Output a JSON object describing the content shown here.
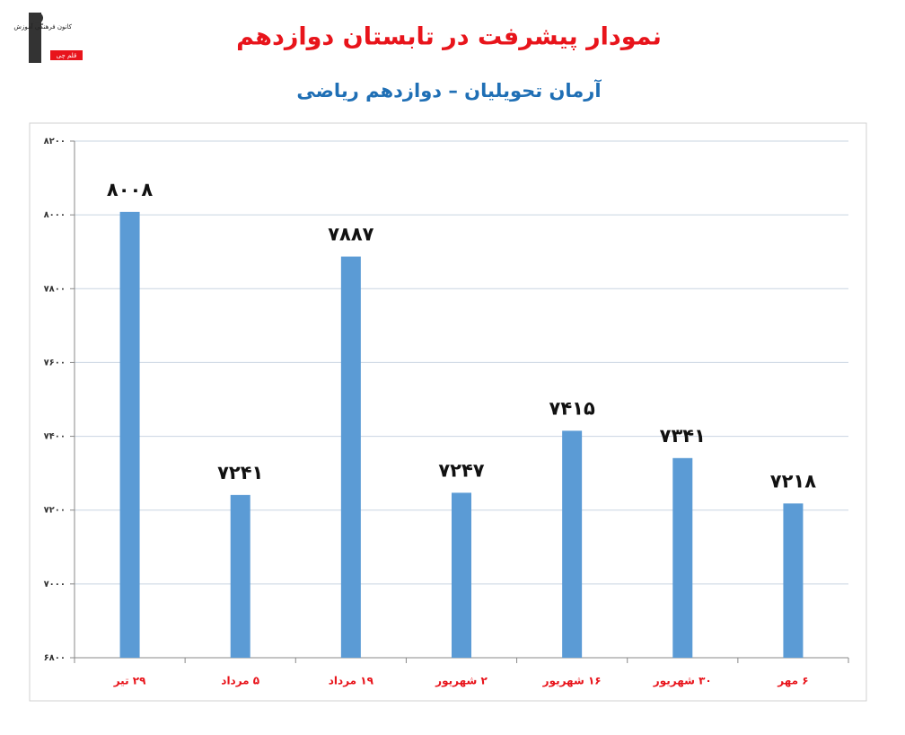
{
  "logo": {
    "name": "کانون فرهنگی آموزش",
    "badge": "قلم چی"
  },
  "chart_data": {
    "type": "bar",
    "title": "نمودار پیشرفت در تابستان دوازدهم",
    "subtitle": "آرمان تحویلیان – دوازدهم ریاضی",
    "categories": [
      "۲۹ تیر",
      "۵ مرداد",
      "۱۹ مرداد",
      "۲ شهریور",
      "۱۶ شهریور",
      "۳۰ شهریور",
      "۶ مهر"
    ],
    "values": [
      8008,
      7241,
      7887,
      7247,
      7415,
      7341,
      7218
    ],
    "value_labels": [
      "۸۰۰۸",
      "۷۲۴۱",
      "۷۸۸۷",
      "۷۲۴۷",
      "۷۴۱۵",
      "۷۳۴۱",
      "۷۲۱۸"
    ],
    "color": "#5b9bd5",
    "ylim": [
      6800,
      8200
    ],
    "yticks": [
      {
        "value": 6800,
        "label": "۶۸۰۰"
      },
      {
        "value": 7000,
        "label": "۷۰۰۰"
      },
      {
        "value": 7200,
        "label": "۷۲۰۰"
      },
      {
        "value": 7400,
        "label": "۷۴۰۰"
      },
      {
        "value": 7600,
        "label": "۷۶۰۰"
      },
      {
        "value": 7800,
        "label": "۷۸۰۰"
      },
      {
        "value": 8000,
        "label": "۸۰۰۰"
      },
      {
        "value": 8200,
        "label": "۸۲۰۰"
      }
    ],
    "grid": true
  }
}
